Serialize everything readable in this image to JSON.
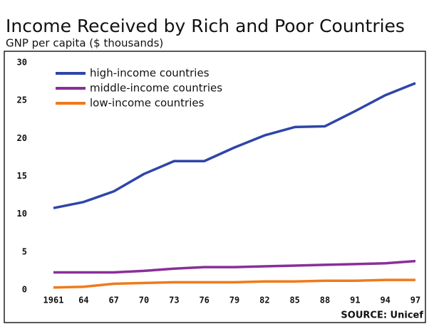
{
  "chart_data": {
    "type": "line",
    "title": "Income Received by Rich and Poor Countries",
    "subtitle": "GNP per capita ($ thousands)",
    "source": "SOURCE: Unicef",
    "categories": [
      "1961",
      "64",
      "67",
      "70",
      "73",
      "76",
      "79",
      "82",
      "85",
      "88",
      "91",
      "94",
      "97"
    ],
    "series": [
      {
        "name": "high-income countries",
        "color": "#2f45a8",
        "values": [
          10.8,
          11.6,
          13,
          15.3,
          17,
          17,
          18.8,
          20.4,
          21.5,
          21.6,
          23.6,
          25.7,
          27.3
        ]
      },
      {
        "name": "middle-income countries",
        "color": "#8a2e9a",
        "values": [
          2.3,
          2.3,
          2.3,
          2.5,
          2.8,
          3,
          3,
          3.1,
          3.2,
          3.3,
          3.4,
          3.5,
          3.8
        ]
      },
      {
        "name": "low-income countries",
        "color": "#f07a1a",
        "values": [
          0.3,
          0.4,
          0.8,
          0.9,
          1,
          1,
          1,
          1.1,
          1.1,
          1.2,
          1.2,
          1.3,
          1.3
        ]
      }
    ],
    "ylim": [
      0,
      30
    ],
    "yticks": [
      0,
      5,
      10,
      15,
      20,
      25,
      30
    ],
    "grid": false,
    "legend": "top-left"
  }
}
